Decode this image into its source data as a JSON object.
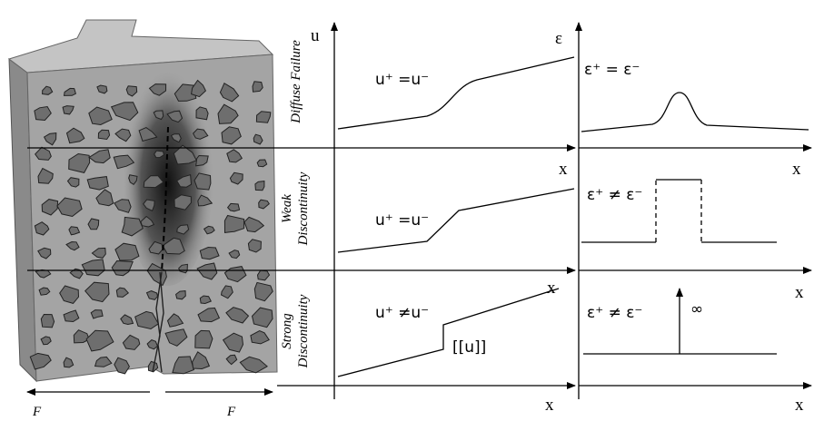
{
  "rows": [
    {
      "label": [
        "Diffuse Failure"
      ],
      "u_formula": "u⁺ =u⁻",
      "eps_formula": "ε⁺ = ε⁻"
    },
    {
      "label": [
        "Weak",
        "Discontinuity"
      ],
      "u_formula": "u⁺ =u⁻",
      "eps_formula": "ε⁺ ≠ ε⁻"
    },
    {
      "label": [
        "Strong",
        "Discontinuity"
      ],
      "u_formula": "u⁺ ≠u⁻",
      "eps_formula": "ε⁺ ≠ ε⁻"
    }
  ],
  "axes": {
    "u": "u",
    "epsilon": "ε",
    "x": "x"
  },
  "jump_label": "[[u]]",
  "infinity": "∞",
  "force": "F"
}
